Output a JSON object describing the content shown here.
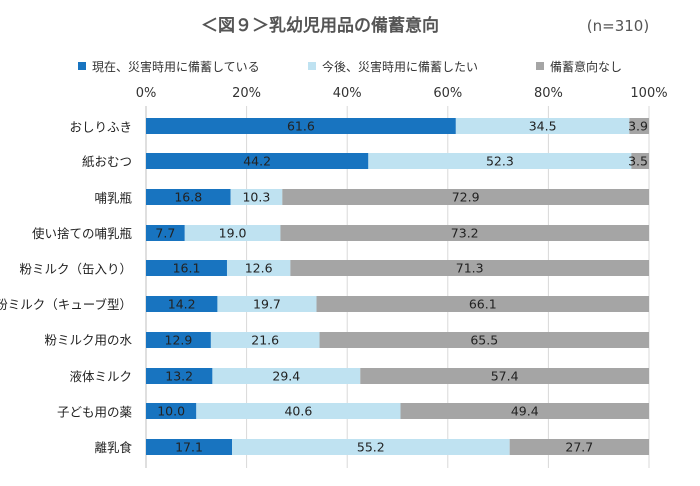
{
  "chart_data": {
    "type": "bar",
    "orientation": "horizontal",
    "stacked": "percent",
    "title": "＜図９＞乳幼児用品の備蓄意向",
    "note": "(n=310)",
    "x_ticks": [
      "0%",
      "20%",
      "40%",
      "60%",
      "80%",
      "100%"
    ],
    "xlim": [
      0,
      100
    ],
    "grid": true,
    "legend_position": "top",
    "categories": [
      "おしりふき",
      "紙おむつ",
      "哺乳瓶",
      "使い捨ての哺乳瓶",
      "粉ミルク（缶入り）",
      "粉ミルク（キューブ型）",
      "粉ミルク用の水",
      "液体ミルク",
      "子ども用の薬",
      "離乳食"
    ],
    "series": [
      {
        "name": "現在、災害時用に備蓄している",
        "color": "#1874c0",
        "values": [
          61.6,
          44.2,
          16.8,
          7.7,
          16.1,
          14.2,
          12.9,
          13.2,
          10.0,
          17.1
        ],
        "labels": [
          "61.6",
          "44.2",
          "16.8",
          "7.7",
          "16.1",
          "14.2",
          "12.9",
          "13.2",
          "10.0",
          "17.1"
        ]
      },
      {
        "name": "今後、災害時用に備蓄したい",
        "color": "#bfe2f1",
        "values": [
          34.5,
          52.3,
          10.3,
          19.0,
          12.6,
          19.7,
          21.6,
          29.4,
          40.6,
          55.2
        ],
        "labels": [
          "34.5",
          "52.3",
          "10.3",
          "19.0",
          "12.6",
          "19.7",
          "21.6",
          "29.4",
          "40.6",
          "55.2"
        ]
      },
      {
        "name": "備蓄意向なし",
        "color": "#a5a5a5",
        "values": [
          3.9,
          3.5,
          72.9,
          73.2,
          71.3,
          66.1,
          65.5,
          57.4,
          49.4,
          27.7
        ],
        "labels": [
          "3.9",
          "3.5",
          "72.9",
          "73.2",
          "71.3",
          "66.1",
          "65.5",
          "57.4",
          "49.4",
          "27.7"
        ]
      }
    ]
  }
}
